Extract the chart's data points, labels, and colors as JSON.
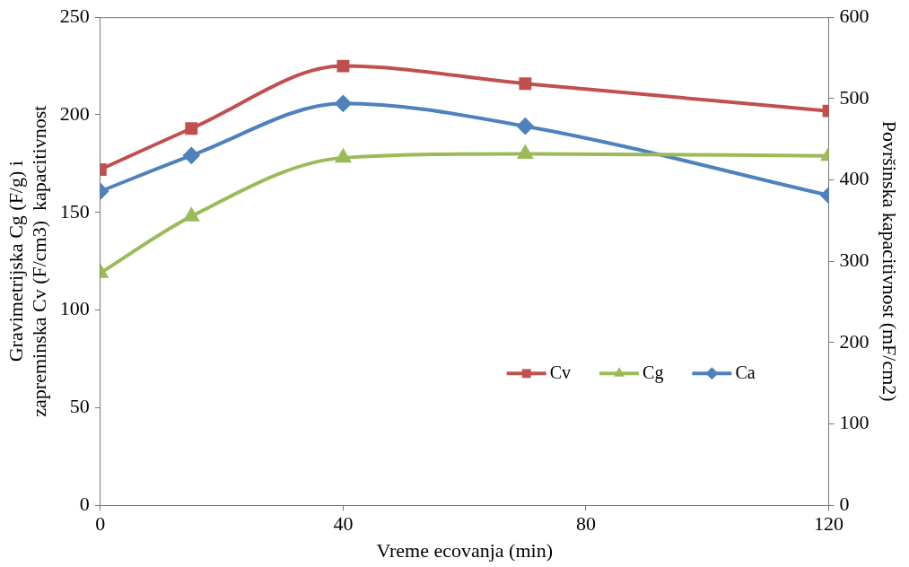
{
  "chart_data": {
    "type": "line",
    "xlabel": "Vreme ecovanja (min)",
    "ylabel": "Gravimetrijska Cg (F/g) i\nzapreminska Cv (F/cm3)  kapacitivnost",
    "y2label": "Površinska kapacitivnost (mF/cm2)",
    "x": [
      0,
      15,
      40,
      70,
      120
    ],
    "series": [
      {
        "name": "Cv",
        "color": "#c0504d",
        "marker": "square",
        "values": [
          172,
          193,
          225,
          216,
          202
        ]
      },
      {
        "name": "Cg",
        "color": "#9bbb59",
        "marker": "triangle",
        "values": [
          119,
          148,
          178,
          180,
          179
        ]
      },
      {
        "name": "Ca",
        "color": "#4f81bd",
        "marker": "diamond",
        "axis": "y2",
        "values": [
          386,
          430,
          494,
          466,
          381
        ]
      }
    ],
    "xlim": [
      0,
      120
    ],
    "xticks": [
      0,
      40,
      80,
      120
    ],
    "ylim": [
      0,
      250
    ],
    "yticks": [
      0,
      50,
      100,
      150,
      200,
      250
    ],
    "y2lim": [
      0,
      600
    ],
    "y2ticks": [
      0,
      100,
      200,
      300,
      400,
      500,
      600
    ],
    "grid": false,
    "legend": "bottom right",
    "line_style": "solid"
  }
}
